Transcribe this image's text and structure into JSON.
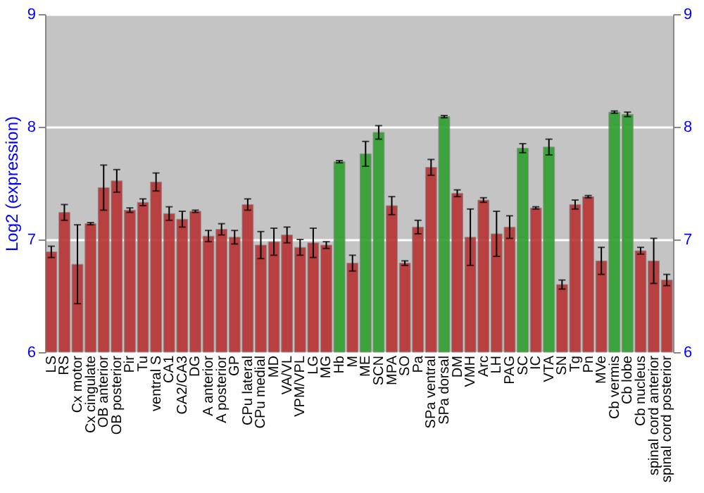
{
  "chart_data": {
    "type": "bar",
    "ylabel": "Log2 (expression)",
    "categories": [
      "LS",
      "RS",
      "Cx motor",
      "Cx cingulate",
      "OB anterior",
      "OB posterior",
      "Pir",
      "Tu",
      "ventral S",
      "CA1",
      "CA2/CA3",
      "DG",
      "A anterior",
      "A posterior",
      "GP",
      "CPu lateral",
      "CPu medial",
      "MD",
      "VA/VL",
      "VPM/VPL",
      "LG",
      "MG",
      "Hb",
      "M",
      "ME",
      "SCN",
      "MPA",
      "SO",
      "Pa",
      "SPa ventral",
      "SPa dorsal",
      "DM",
      "VMH",
      "Arc",
      "LH",
      "PAG",
      "SC",
      "IC",
      "VTA",
      "SN",
      "Tg",
      "Pn",
      "MVe",
      "Cb vermis",
      "Cb lobe",
      "Cb nucleus",
      "spinal cord anterior",
      "spinal cord posterior"
    ],
    "values": [
      6.89,
      7.24,
      6.78,
      7.14,
      7.46,
      7.52,
      7.26,
      7.33,
      7.51,
      7.23,
      7.18,
      7.25,
      7.03,
      7.09,
      7.02,
      7.31,
      6.95,
      6.98,
      7.04,
      6.93,
      6.97,
      6.95,
      7.69,
      6.79,
      7.76,
      7.95,
      7.3,
      6.79,
      7.11,
      7.64,
      8.09,
      7.41,
      7.02,
      7.35,
      7.05,
      7.11,
      7.81,
      7.28,
      7.82,
      6.6,
      7.31,
      7.38,
      6.81,
      8.13,
      8.11,
      6.9,
      6.81,
      6.64
    ],
    "errors": [
      0.05,
      0.07,
      0.35,
      0.01,
      0.2,
      0.1,
      0.02,
      0.03,
      0.08,
      0.06,
      0.07,
      0.01,
      0.05,
      0.05,
      0.06,
      0.05,
      0.12,
      0.12,
      0.07,
      0.07,
      0.13,
      0.03,
      0.01,
      0.07,
      0.11,
      0.06,
      0.08,
      0.02,
      0.06,
      0.07,
      0.01,
      0.03,
      0.25,
      0.02,
      0.2,
      0.1,
      0.04,
      0.01,
      0.07,
      0.04,
      0.04,
      0.01,
      0.12,
      0.01,
      0.02,
      0.03,
      0.2,
      0.05
    ],
    "colors": [
      "#b83232",
      "#b83232",
      "#b83232",
      "#b83232",
      "#b83232",
      "#b83232",
      "#b83232",
      "#b83232",
      "#b83232",
      "#b83232",
      "#b83232",
      "#b83232",
      "#b83232",
      "#b83232",
      "#b83232",
      "#b83232",
      "#b83232",
      "#b83232",
      "#b83232",
      "#b83232",
      "#b83232",
      "#b83232",
      "#2ea02e",
      "#b83232",
      "#2ea02e",
      "#2ea02e",
      "#b83232",
      "#b83232",
      "#b83232",
      "#b83232",
      "#2ea02e",
      "#b83232",
      "#b83232",
      "#b83232",
      "#b83232",
      "#b83232",
      "#2ea02e",
      "#b83232",
      "#2ea02e",
      "#b83232",
      "#b83232",
      "#b83232",
      "#b83232",
      "#2ea02e",
      "#2ea02e",
      "#b83232",
      "#b83232",
      "#b83232"
    ],
    "ylim": [
      6,
      9
    ],
    "yticks": [
      6,
      7,
      8,
      9
    ],
    "y2lim": [
      6,
      9
    ],
    "y2ticks": [
      6,
      7,
      8,
      9
    ],
    "grid": "y"
  }
}
